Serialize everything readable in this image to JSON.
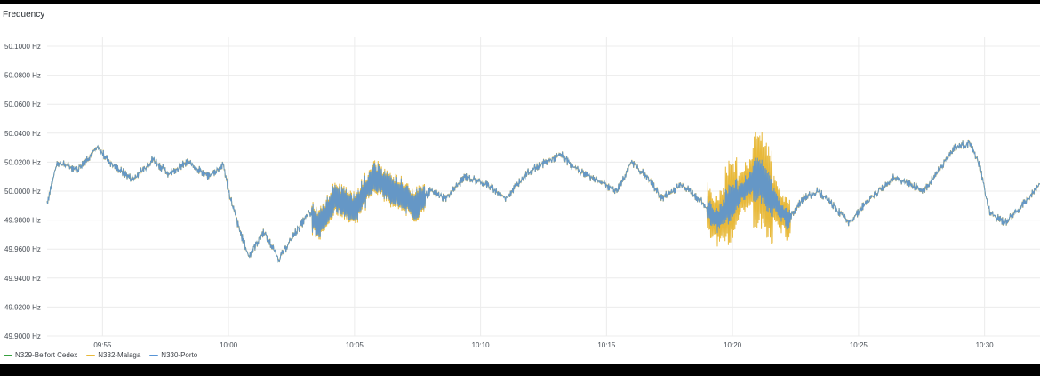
{
  "panel": {
    "title": "Frequency"
  },
  "chart_data": {
    "type": "line",
    "title": "Frequency",
    "y_unit": "Hz",
    "ylim": [
      49.9,
      50.1
    ],
    "y_ticks": [
      "50.1000 Hz",
      "50.0800 Hz",
      "50.0600 Hz",
      "50.0400 Hz",
      "50.0200 Hz",
      "50.0000 Hz",
      "49.9800 Hz",
      "49.9600 Hz",
      "49.9400 Hz",
      "49.9200 Hz",
      "49.9000 Hz"
    ],
    "y_tick_values": [
      50.1,
      50.08,
      50.06,
      50.04,
      50.02,
      50.0,
      49.98,
      49.96,
      49.94,
      49.92,
      49.9
    ],
    "x_ticks": [
      "09:55",
      "10:00",
      "10:05",
      "10:10",
      "10:15",
      "10:20",
      "10:25",
      "10:30"
    ],
    "x_tick_minutes": [
      -5,
      0,
      5,
      10,
      15,
      20,
      25,
      30
    ],
    "xlim_minutes_from_10_00": [
      -7.2,
      32.2
    ],
    "grid": true,
    "legend_position": "bottom-left",
    "series": [
      {
        "name": "N329-Belfort Cedex",
        "color": "#37a13f"
      },
      {
        "name": "N332-Malaga",
        "color": "#e8b93a"
      },
      {
        "name": "N330-Porto",
        "color": "#5794d6"
      }
    ],
    "approx_points": [
      [
        -7.2,
        49.992
      ],
      [
        -6.8,
        50.02
      ],
      [
        -6.0,
        50.015
      ],
      [
        -5.2,
        50.03
      ],
      [
        -4.6,
        50.018
      ],
      [
        -3.8,
        50.008
      ],
      [
        -3.0,
        50.022
      ],
      [
        -2.4,
        50.012
      ],
      [
        -1.6,
        50.02
      ],
      [
        -0.8,
        50.01
      ],
      [
        -0.2,
        50.018
      ],
      [
        0.0,
        50.0
      ],
      [
        0.4,
        49.975
      ],
      [
        0.8,
        49.955
      ],
      [
        1.4,
        49.972
      ],
      [
        2.0,
        49.953
      ],
      [
        2.6,
        49.97
      ],
      [
        3.2,
        49.985
      ],
      [
        3.6,
        49.976
      ],
      [
        4.2,
        49.995
      ],
      [
        5.0,
        49.988
      ],
      [
        5.8,
        50.01
      ],
      [
        6.6,
        50.0
      ],
      [
        7.4,
        49.99
      ],
      [
        8.0,
        50.0
      ],
      [
        8.6,
        49.995
      ],
      [
        9.4,
        50.01
      ],
      [
        10.2,
        50.005
      ],
      [
        11.0,
        49.995
      ],
      [
        11.8,
        50.012
      ],
      [
        12.6,
        50.02
      ],
      [
        13.2,
        50.025
      ],
      [
        13.8,
        50.015
      ],
      [
        14.6,
        50.008
      ],
      [
        15.4,
        50.0
      ],
      [
        16.0,
        50.02
      ],
      [
        16.6,
        50.01
      ],
      [
        17.2,
        49.995
      ],
      [
        18.0,
        50.005
      ],
      [
        18.8,
        49.992
      ],
      [
        19.4,
        49.98
      ],
      [
        19.8,
        49.99
      ],
      [
        20.4,
        50.0
      ],
      [
        21.0,
        50.01
      ],
      [
        21.6,
        49.995
      ],
      [
        22.2,
        49.98
      ],
      [
        22.8,
        49.995
      ],
      [
        23.4,
        50.0
      ],
      [
        24.0,
        49.99
      ],
      [
        24.6,
        49.978
      ],
      [
        25.2,
        49.99
      ],
      [
        25.8,
        50.0
      ],
      [
        26.4,
        50.01
      ],
      [
        27.0,
        50.005
      ],
      [
        27.6,
        50.0
      ],
      [
        28.2,
        50.015
      ],
      [
        28.8,
        50.03
      ],
      [
        29.4,
        50.033
      ],
      [
        29.8,
        50.018
      ],
      [
        30.2,
        49.985
      ],
      [
        30.8,
        49.978
      ],
      [
        31.4,
        49.988
      ],
      [
        32.2,
        50.005
      ]
    ]
  }
}
